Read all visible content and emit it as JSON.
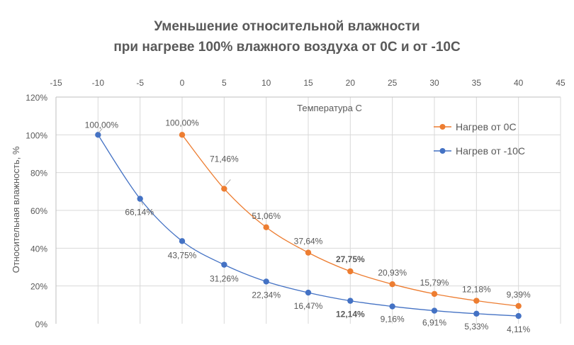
{
  "chart_data": {
    "type": "line",
    "title_line1": "Уменьшение относительной влажности",
    "title_line2": "при нагреве 100% влажного воздуха от 0С и от -10С",
    "xlabel": "Температура С",
    "ylabel": "Относительная влажность, %",
    "xlim": [
      -15,
      45
    ],
    "ylim": [
      0,
      120
    ],
    "x_ticks": [
      "-15",
      "-10",
      "-5",
      "0",
      "5",
      "10",
      "15",
      "20",
      "25",
      "30",
      "35",
      "40",
      "45"
    ],
    "y_ticks": [
      "0%",
      "20%",
      "40%",
      "60%",
      "80%",
      "100%",
      "120%"
    ],
    "legend_position": "right",
    "series": [
      {
        "name": "Нагрев от 0С",
        "color": "#ED7D31",
        "x": [
          0,
          5,
          10,
          15,
          20,
          25,
          30,
          35,
          40
        ],
        "values": [
          100,
          71.46,
          51.06,
          37.64,
          27.75,
          20.93,
          15.79,
          12.18,
          9.39
        ],
        "labels": [
          "100,00%",
          "71,46%",
          "51,06%",
          "37,64%",
          "27,75%",
          "20,93%",
          "15,79%",
          "12,18%",
          "9,39%"
        ]
      },
      {
        "name": "Нагрев от -10С",
        "color": "#4472C4",
        "x": [
          -10,
          -5,
          0,
          5,
          10,
          15,
          20,
          25,
          30,
          35,
          40
        ],
        "values": [
          100,
          66.14,
          43.75,
          31.26,
          22.34,
          16.47,
          12.14,
          9.16,
          6.91,
          5.33,
          4.11
        ],
        "labels": [
          "100,00%",
          "66,14%",
          "43,75%",
          "31,26%",
          "22,34%",
          "16,47%",
          "12,14%",
          "9,16%",
          "6,91%",
          "5,33%",
          "4,11%"
        ]
      }
    ]
  }
}
